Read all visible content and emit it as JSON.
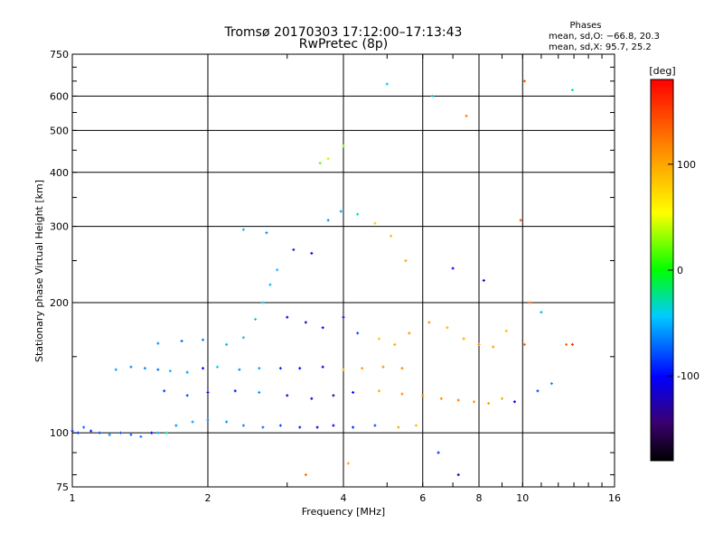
{
  "chart_data": {
    "type": "scatter",
    "title": "Tromsø 20170303 17:12:00–17:13:43",
    "subtitle": "RwPretec (8p)",
    "info": {
      "heading": "Phases",
      "line1": "mean, sd,O: −66.8, 20.3",
      "line2": "mean, sd,X:  95.7, 25.2"
    },
    "xlabel": "Frequency [MHz]",
    "ylabel": "Stationary phase Virtual Height [km]",
    "x_scale": "log",
    "y_scale": "log",
    "xlim": [
      1,
      16
    ],
    "ylim": [
      75,
      750
    ],
    "x_ticks": [
      1,
      2,
      4,
      6,
      8,
      10,
      16
    ],
    "x_tick_labels": [
      "1",
      "2",
      "4",
      "6",
      "8",
      "10",
      "16"
    ],
    "y_ticks": [
      75,
      100,
      200,
      300,
      400,
      500,
      600,
      750
    ],
    "y_tick_labels": [
      "75",
      "100",
      "200",
      "300",
      "400",
      "500",
      "600",
      "750"
    ],
    "grid": true,
    "colorbar": {
      "label": "[deg]",
      "range": [
        -180,
        180
      ],
      "ticks": [
        100,
        0,
        -100
      ],
      "tick_labels": [
        "100",
        "0",
        "-100"
      ]
    },
    "series": [
      {
        "points": [
          [
            1.0,
            101,
            -95
          ],
          [
            1.03,
            100,
            -88
          ],
          [
            1.06,
            103,
            -70
          ],
          [
            1.1,
            101,
            -92
          ],
          [
            1.15,
            100,
            -80
          ],
          [
            1.21,
            99,
            -60
          ],
          [
            1.28,
            100,
            -75
          ],
          [
            1.35,
            99,
            -72
          ],
          [
            1.42,
            98,
            -65
          ],
          [
            1.5,
            100,
            -100
          ],
          [
            1.55,
            100,
            -50
          ],
          [
            1.62,
            100,
            -20
          ]
        ]
      },
      {
        "points": [
          [
            1.7,
            104,
            -60
          ],
          [
            1.85,
            106,
            -55
          ],
          [
            2.0,
            107,
            -62
          ],
          [
            2.2,
            106,
            -58
          ],
          [
            2.4,
            104,
            -65
          ],
          [
            2.65,
            103,
            -70
          ],
          [
            2.9,
            104,
            -80
          ],
          [
            3.2,
            103,
            -95
          ],
          [
            3.5,
            103,
            -110
          ],
          [
            3.8,
            104,
            -100
          ],
          [
            4.2,
            103,
            -90
          ],
          [
            4.7,
            104,
            -80
          ],
          [
            5.3,
            103,
            100
          ],
          [
            5.8,
            104,
            90
          ]
        ]
      },
      {
        "points": [
          [
            1.25,
            140,
            -55
          ],
          [
            1.35,
            142,
            -60
          ],
          [
            1.45,
            141,
            -62
          ],
          [
            1.55,
            140,
            -70
          ],
          [
            1.65,
            139,
            -50
          ],
          [
            1.8,
            138,
            -58
          ],
          [
            1.95,
            141,
            -100
          ],
          [
            2.1,
            142,
            -40
          ],
          [
            2.35,
            140,
            -60
          ],
          [
            2.6,
            141,
            -55
          ],
          [
            2.9,
            141,
            -90
          ],
          [
            3.2,
            141,
            -100
          ],
          [
            3.6,
            142,
            -110
          ],
          [
            4.0,
            140,
            95
          ],
          [
            4.4,
            141,
            105
          ],
          [
            4.9,
            142,
            110
          ],
          [
            5.4,
            141,
            115
          ]
        ]
      },
      {
        "points": [
          [
            1.55,
            161,
            -60
          ],
          [
            1.75,
            163,
            -70
          ],
          [
            1.95,
            164,
            -65
          ],
          [
            2.2,
            160,
            -50
          ],
          [
            2.4,
            166,
            -45
          ],
          [
            2.55,
            183,
            -40
          ],
          [
            2.65,
            200,
            -45
          ],
          [
            2.75,
            220,
            -50
          ],
          [
            2.85,
            238,
            -48
          ],
          [
            3.0,
            185,
            -110
          ],
          [
            3.3,
            180,
            -120
          ],
          [
            3.6,
            175,
            -100
          ],
          [
            4.0,
            185,
            -115
          ],
          [
            4.3,
            170,
            -80
          ],
          [
            4.8,
            165,
            85
          ],
          [
            5.2,
            160,
            100
          ],
          [
            5.6,
            170,
            110
          ]
        ]
      },
      {
        "points": [
          [
            1.6,
            125,
            -85
          ],
          [
            1.8,
            122,
            -80
          ],
          [
            2.0,
            124,
            -100
          ],
          [
            2.3,
            125,
            -95
          ],
          [
            2.6,
            124,
            -60
          ],
          [
            3.0,
            122,
            -110
          ],
          [
            3.4,
            120,
            -120
          ],
          [
            3.8,
            122,
            -130
          ],
          [
            4.2,
            124,
            -100
          ],
          [
            4.8,
            125,
            100
          ],
          [
            5.4,
            123,
            110
          ],
          [
            6.0,
            122,
            120
          ],
          [
            6.6,
            120,
            115
          ],
          [
            7.2,
            119,
            120
          ],
          [
            7.8,
            118,
            110
          ],
          [
            8.4,
            117,
            105
          ],
          [
            9.0,
            120,
            100
          ],
          [
            9.6,
            118,
            -110
          ]
        ]
      },
      {
        "points": [
          [
            2.4,
            295,
            -50
          ],
          [
            2.7,
            290,
            -60
          ],
          [
            3.1,
            265,
            -90
          ],
          [
            3.4,
            260,
            -100
          ],
          [
            3.7,
            310,
            -60
          ],
          [
            3.95,
            325,
            -55
          ],
          [
            4.3,
            320,
            -20
          ],
          [
            4.7,
            305,
            80
          ],
          [
            5.1,
            285,
            90
          ],
          [
            5.5,
            250,
            100
          ],
          [
            3.55,
            420,
            20
          ],
          [
            3.7,
            430,
            40
          ],
          [
            4.0,
            460,
            30
          ],
          [
            5.0,
            640,
            -45
          ],
          [
            6.3,
            600,
            -40
          ],
          [
            7.5,
            540,
            120
          ],
          [
            10.1,
            650,
            140
          ],
          [
            12.9,
            620,
            -20
          ]
        ]
      },
      {
        "points": [
          [
            6.2,
            180,
            110
          ],
          [
            6.8,
            175,
            95
          ],
          [
            7.4,
            165,
            100
          ],
          [
            8.0,
            160,
            120
          ],
          [
            8.6,
            158,
            105
          ],
          [
            9.2,
            172,
            90
          ],
          [
            10.1,
            160,
            130
          ],
          [
            10.8,
            125,
            -80
          ],
          [
            11.6,
            130,
            -60
          ],
          [
            12.5,
            160,
            130
          ],
          [
            12.9,
            160,
            160
          ],
          [
            11.0,
            190,
            -50
          ],
          [
            8.2,
            225,
            -120
          ],
          [
            7.0,
            240,
            -100
          ],
          [
            9.9,
            310,
            140
          ],
          [
            10.4,
            200,
            130
          ],
          [
            6.5,
            90,
            -90
          ],
          [
            7.2,
            80,
            -130
          ],
          [
            3.3,
            80,
            130
          ],
          [
            4.1,
            85,
            100
          ]
        ]
      }
    ]
  }
}
